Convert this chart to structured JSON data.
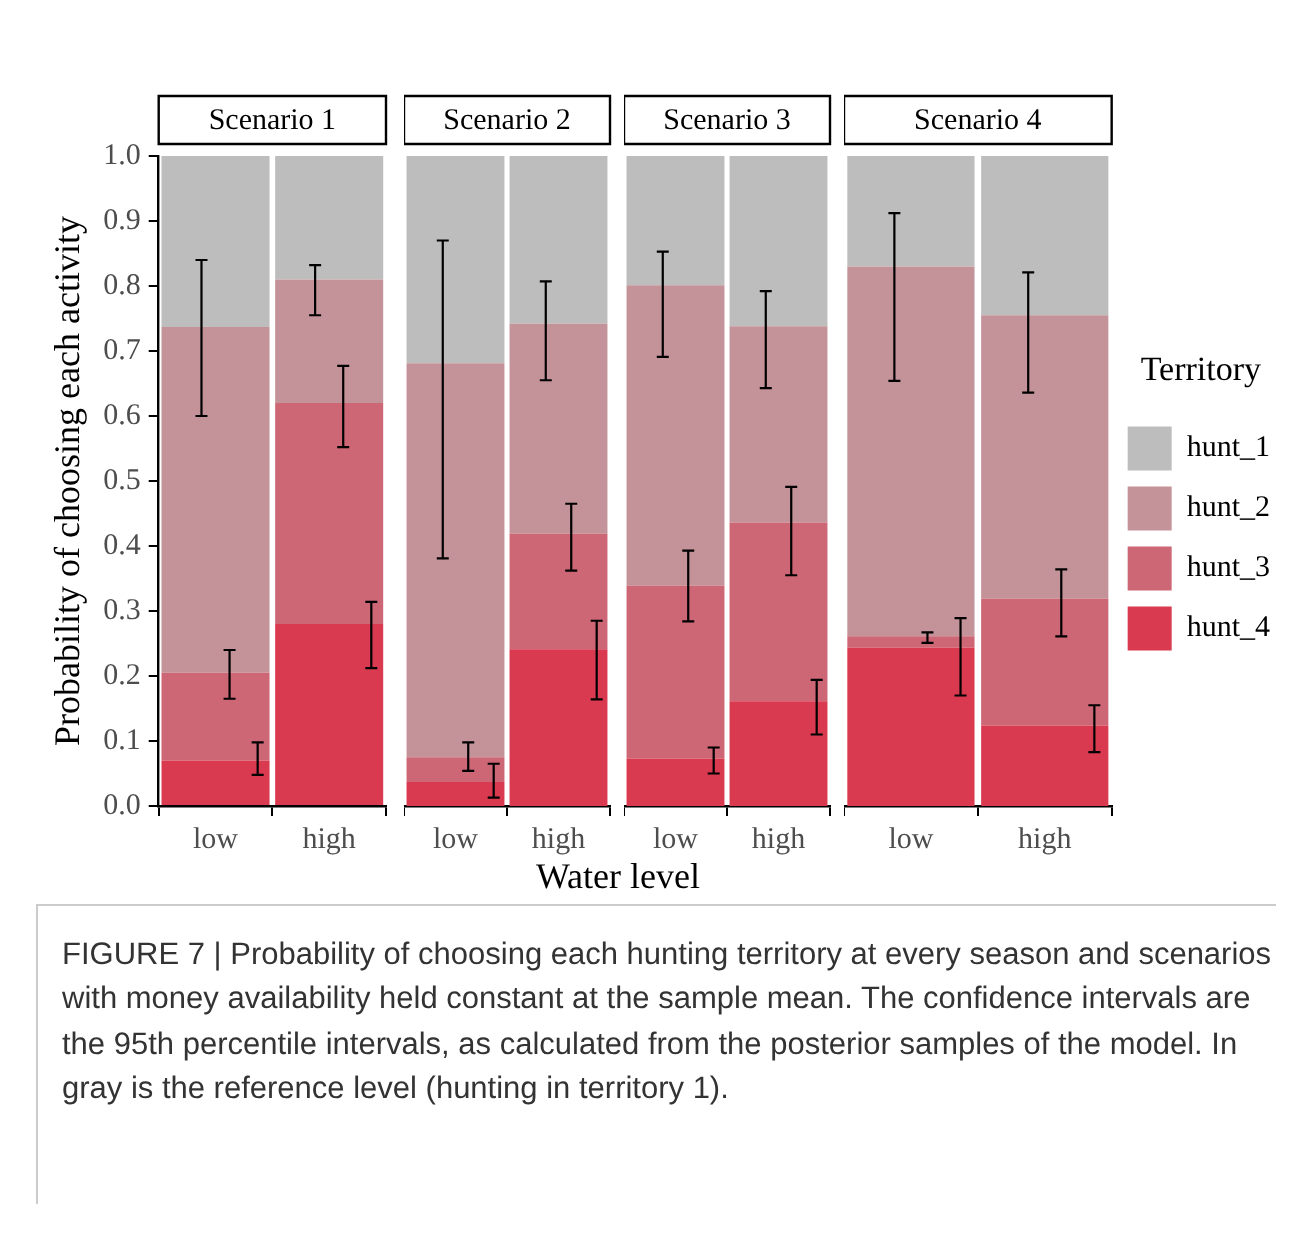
{
  "chart_data": [
    {
      "type": "bar",
      "title": "Scenario 1",
      "ylabel": "Probability of choosing each activity",
      "xlabel": "Water level",
      "categories": [
        "low",
        "high"
      ],
      "stacked": true,
      "ylim": [
        0,
        1
      ],
      "yticks": [
        {
          "value": 0,
          "label": "0.0"
        },
        {
          "value": 0.1,
          "label": "0.1"
        },
        {
          "value": 0.2,
          "label": "0.2"
        },
        {
          "value": 0.3,
          "label": "0.3"
        },
        {
          "value": 0.4,
          "label": "0.4"
        },
        {
          "value": 0.5,
          "label": "0.5"
        },
        {
          "value": 0.6,
          "label": "0.6"
        },
        {
          "value": 0.7,
          "label": "0.7"
        },
        {
          "value": 0.8,
          "label": "0.8"
        },
        {
          "value": 0.9,
          "label": "0.9"
        },
        {
          "value": 1,
          "label": "1.0"
        }
      ],
      "annotations": [
        "FIGURE 7 | Probability of choosing each hunting territory at every season and scenarios with money availability held constant at the sample mean. The confidence intervals are the 95th percentile intervals, as calculated from the posterior samples of the model. In gray is the reference level (hunting in territory 1)."
      ],
      "series": [
        {
          "color": "#d93a50",
          "values": [
            0.07,
            0.28
          ],
          "errors": [
            [
              0.048,
              0.098
            ],
            [
              0.212,
              0.314
            ]
          ]
        },
        {
          "color": "#cd6675",
          "values": [
            0.135,
            0.34
          ],
          "errors": [
            [
              0.165,
              0.24
            ],
            [
              0.552,
              0.677
            ]
          ]
        },
        {
          "color": "#c49399",
          "values": [
            0.532,
            0.19
          ],
          "errors": [
            [
              0.6,
              0.84
            ],
            [
              0.755,
              0.832
            ]
          ]
        },
        {
          "color": "#bdbdbd",
          "values": [
            0.263,
            0.19
          ]
        }
      ]
    },
    {
      "type": "bar",
      "title": "Scenario 2",
      "categories": [
        "low",
        "high"
      ],
      "stacked": true,
      "tick_labels": "x",
      "ylim": [
        0,
        1
      ],
      "series": [
        {
          "color": "#d93a50",
          "values": [
            0.037,
            0.241
          ],
          "errors": [
            [
              0.013,
              0.065
            ],
            [
              0.164,
              0.285
            ]
          ]
        },
        {
          "color": "#cd6675",
          "values": [
            0.038,
            0.178
          ],
          "errors": [
            [
              0.054,
              0.098
            ],
            [
              0.362,
              0.465
            ]
          ]
        },
        {
          "color": "#c49399",
          "values": [
            0.606,
            0.323
          ],
          "errors": [
            [
              0.381,
              0.87
            ],
            [
              0.655,
              0.807
            ]
          ]
        },
        {
          "color": "#bdbdbd",
          "values": [
            0.319,
            0.258
          ]
        }
      ]
    },
    {
      "type": "bar",
      "title": "Scenario 3",
      "categories": [
        "low",
        "high"
      ],
      "stacked": true,
      "tick_labels": "x",
      "ylim": [
        0,
        1
      ],
      "series": [
        {
          "color": "#d93a50",
          "values": [
            0.073,
            0.161
          ],
          "errors": [
            [
              0.05,
              0.09
            ],
            [
              0.11,
              0.194
            ]
          ]
        },
        {
          "color": "#cd6675",
          "values": [
            0.266,
            0.275
          ],
          "errors": [
            [
              0.284,
              0.393
            ],
            [
              0.355,
              0.491
            ]
          ]
        },
        {
          "color": "#c49399",
          "values": [
            0.462,
            0.302
          ],
          "errors": [
            [
              0.691,
              0.853
            ],
            [
              0.643,
              0.792
            ]
          ]
        },
        {
          "color": "#bdbdbd",
          "values": [
            0.199,
            0.262
          ]
        }
      ]
    },
    {
      "type": "bar",
      "title": "Scenario 4",
      "categories": [
        "low",
        "high"
      ],
      "stacked": true,
      "tick_labels": "x",
      "legend": "right",
      "legend_title": "Territory",
      "ylim": [
        0,
        1
      ],
      "series": [
        {
          "name": "hunt_4",
          "color": "#d93a50",
          "values": [
            0.244,
            0.124
          ],
          "errors": [
            [
              0.17,
              0.289
            ],
            [
              0.083,
              0.155
            ]
          ]
        },
        {
          "name": "hunt_3",
          "color": "#cd6675",
          "values": [
            0.017,
            0.195
          ],
          "errors": [
            [
              0.251,
              0.267
            ],
            [
              0.261,
              0.364
            ]
          ]
        },
        {
          "name": "hunt_2",
          "color": "#c49399",
          "values": [
            0.569,
            0.436
          ],
          "errors": [
            [
              0.654,
              0.912
            ],
            [
              0.636,
              0.821
            ]
          ]
        },
        {
          "name": "hunt_1",
          "color": "#bdbdbd",
          "values": [
            0.17,
            0.245
          ]
        }
      ]
    }
  ]
}
